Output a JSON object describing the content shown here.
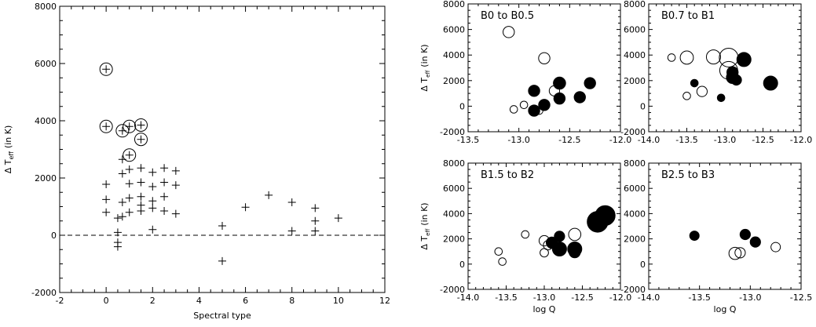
{
  "chart_data": [
    {
      "type": "scatter",
      "title": "",
      "xlabel": "Spectral type",
      "ylabel": "Δ T",
      "ylabel_sub": "eff",
      "ylabel_unit": "(in K)",
      "xlim": [
        -2,
        12
      ],
      "ylim": [
        -2000,
        8000
      ],
      "xticks": [
        -2,
        0,
        2,
        4,
        6,
        8,
        10,
        12
      ],
      "yticks": [
        -2000,
        0,
        2000,
        4000,
        6000,
        8000
      ],
      "reference_line": {
        "y": 0,
        "style": "dashed"
      },
      "marker": "plus",
      "points": [
        [
          0,
          5800
        ],
        [
          0,
          3800
        ],
        [
          0,
          1780
        ],
        [
          0,
          1250
        ],
        [
          0,
          800
        ],
        [
          0.5,
          600
        ],
        [
          0.5,
          100
        ],
        [
          0.5,
          -250
        ],
        [
          0.5,
          -400
        ],
        [
          0.7,
          3650
        ],
        [
          0.7,
          2650
        ],
        [
          0.7,
          2150
        ],
        [
          0.7,
          1150
        ],
        [
          0.7,
          650
        ],
        [
          1,
          3800
        ],
        [
          1,
          2800
        ],
        [
          1,
          2300
        ],
        [
          1,
          1800
        ],
        [
          1,
          1300
        ],
        [
          1,
          800
        ],
        [
          1.5,
          3850
        ],
        [
          1.5,
          3350
        ],
        [
          1.5,
          2350
        ],
        [
          1.5,
          1850
        ],
        [
          1.5,
          1350
        ],
        [
          1.5,
          1050
        ],
        [
          1.5,
          850
        ],
        [
          2,
          2200
        ],
        [
          2,
          1700
        ],
        [
          2,
          1200
        ],
        [
          2,
          950
        ],
        [
          2,
          200
        ],
        [
          2.5,
          2350
        ],
        [
          2.5,
          1850
        ],
        [
          2.5,
          1350
        ],
        [
          2.5,
          850
        ],
        [
          3,
          2250
        ],
        [
          3,
          1750
        ],
        [
          3,
          750
        ],
        [
          5,
          330
        ],
        [
          5,
          -900
        ],
        [
          6,
          980
        ],
        [
          7,
          1400
        ],
        [
          8,
          1150
        ],
        [
          8,
          150
        ],
        [
          9,
          950
        ],
        [
          9,
          500
        ],
        [
          9,
          150
        ],
        [
          10,
          600
        ]
      ],
      "circled_points": [
        [
          0,
          5800
        ],
        [
          0,
          3800
        ],
        [
          0.7,
          3650
        ],
        [
          1,
          3800
        ],
        [
          1,
          2800
        ],
        [
          1.5,
          3850
        ],
        [
          1.5,
          3350
        ]
      ]
    },
    {
      "type": "scatter",
      "title": "B0 to B0.5",
      "xlabel": "",
      "ylabel": "Δ T",
      "ylabel_sub": "eff",
      "ylabel_unit": "(in K)",
      "xlim": [
        -13.5,
        -12.0
      ],
      "ylim": [
        -2000,
        8000
      ],
      "xticks": [
        -13.5,
        -13.0,
        -12.5,
        -12.0
      ],
      "yticks": [
        -2000,
        0,
        2000,
        4000,
        6000,
        8000
      ],
      "marker": "circle",
      "filled_points": [
        [
          -12.85,
          1200
        ],
        [
          -12.85,
          -350
        ],
        [
          -12.75,
          100
        ],
        [
          -12.6,
          1800
        ],
        [
          -12.6,
          600
        ],
        [
          -12.4,
          700
        ],
        [
          -12.3,
          1800
        ]
      ],
      "open_points": [
        [
          -13.1,
          5800
        ],
        [
          -12.75,
          3750
        ],
        [
          -12.65,
          1200
        ],
        [
          -12.95,
          100
        ],
        [
          -13.05,
          -250
        ],
        [
          -12.8,
          -350
        ]
      ],
      "open_sizes": [
        1.2,
        1.2,
        1.1,
        0.8,
        0.8,
        0.8
      ],
      "filled_sizes": [
        1.2,
        1.2,
        1.2,
        1.3,
        1.2,
        1.2,
        1.2
      ]
    },
    {
      "type": "scatter",
      "title": "B0.7 to B1",
      "xlabel": "",
      "ylabel": "",
      "xlim": [
        -14.0,
        -12.0
      ],
      "ylim": [
        -2000,
        8000
      ],
      "xticks": [
        -14.0,
        -13.5,
        -13.0,
        -12.5,
        -12.0
      ],
      "yticks": [
        -2000,
        0,
        2000,
        4000,
        6000,
        8000
      ],
      "marker": "circle",
      "filled_points": [
        [
          -12.75,
          3650
        ],
        [
          -12.9,
          2650
        ],
        [
          -12.9,
          2250
        ],
        [
          -12.85,
          2050
        ],
        [
          -12.4,
          1800
        ],
        [
          -13.4,
          1800
        ],
        [
          -13.05,
          650
        ]
      ],
      "open_points": [
        [
          -13.7,
          3800
        ],
        [
          -13.5,
          3800
        ],
        [
          -13.15,
          3850
        ],
        [
          -12.95,
          3800
        ],
        [
          -12.95,
          2800
        ],
        [
          -13.3,
          1150
        ],
        [
          -13.5,
          800
        ]
      ],
      "open_sizes": [
        0.8,
        1.4,
        1.5,
        2.0,
        1.9,
        1.1,
        0.8
      ],
      "filled_sizes": [
        1.5,
        1.2,
        1.3,
        1.1,
        1.5,
        0.8,
        0.8
      ]
    },
    {
      "type": "scatter",
      "title": "B1.5 to B2",
      "xlabel": "log Q",
      "ylabel": "Δ T",
      "ylabel_sub": "eff",
      "ylabel_unit": "(in K)",
      "xlim": [
        -14.0,
        -12.0
      ],
      "ylim": [
        -2000,
        8000
      ],
      "xticks": [
        -14.0,
        -13.5,
        -13.0,
        -12.5,
        -12.0
      ],
      "yticks": [
        -2000,
        0,
        2000,
        4000,
        6000,
        8000
      ],
      "marker": "circle",
      "filled_points": [
        [
          -12.2,
          3850
        ],
        [
          -12.3,
          3350
        ],
        [
          -12.8,
          2200
        ],
        [
          -12.9,
          1700
        ],
        [
          -12.8,
          1200
        ],
        [
          -12.6,
          1200
        ],
        [
          -12.6,
          950
        ]
      ],
      "open_points": [
        [
          -13.6,
          1000
        ],
        [
          -13.55,
          200
        ],
        [
          -13.25,
          2350
        ],
        [
          -13.0,
          1850
        ],
        [
          -12.95,
          1500
        ],
        [
          -13.0,
          900
        ],
        [
          -12.6,
          2350
        ]
      ],
      "open_sizes": [
        0.8,
        0.8,
        0.8,
        1.1,
        1.0,
        0.9,
        1.3
      ],
      "filled_sizes": [
        2.1,
        2.2,
        1.1,
        1.2,
        1.5,
        1.5,
        1.2
      ]
    },
    {
      "type": "scatter",
      "title": "B2.5 to B3",
      "xlabel": "log Q",
      "ylabel": "",
      "xlim": [
        -14.0,
        -12.5
      ],
      "ylim": [
        -2000,
        8000
      ],
      "xticks": [
        -14.0,
        -13.5,
        -13.0,
        -12.5
      ],
      "yticks": [
        -2000,
        0,
        2000,
        4000,
        6000,
        8000
      ],
      "marker": "circle",
      "filled_points": [
        [
          -13.55,
          2250
        ],
        [
          -13.05,
          2350
        ],
        [
          -12.95,
          1750
        ]
      ],
      "open_points": [
        [
          -13.15,
          850
        ],
        [
          -13.1,
          900
        ],
        [
          -12.75,
          1350
        ]
      ],
      "open_sizes": [
        1.3,
        1.1,
        1.0
      ],
      "filled_sizes": [
        1.0,
        1.1,
        1.1
      ]
    }
  ]
}
